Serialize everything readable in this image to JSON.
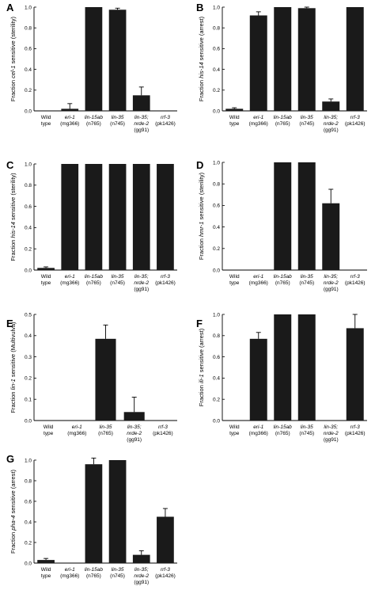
{
  "chart_data": [
    {
      "panel": "A",
      "type": "bar",
      "ylabel_pre": "Fraction ",
      "ylabel_gene": "cel-1",
      "ylabel_post": " sensitive (sterility)",
      "ylim": [
        0,
        1.0
      ],
      "yticks": [
        "0.0",
        "0.2",
        "0.4",
        "0.6",
        "0.8",
        "1.0"
      ],
      "categories": [
        [
          "Wild",
          "type"
        ],
        [
          "eri-1",
          "(mg366)"
        ],
        [
          "lin-15ab",
          "(n765)"
        ],
        [
          "lin-35",
          "(n745)"
        ],
        [
          "lin-35;",
          "nrde-2",
          "(gg91)"
        ],
        [
          "rrf-3",
          "(pk1426)"
        ]
      ],
      "values": [
        0,
        0.02,
        1.0,
        0.975,
        0.15,
        null
      ],
      "errors": [
        0,
        0.05,
        0,
        0.015,
        0.08,
        0
      ]
    },
    {
      "panel": "B",
      "type": "bar",
      "ylabel_pre": "Fraction ",
      "ylabel_gene": "his-14",
      "ylabel_post": " sensitive (arrest)",
      "ylim": [
        0,
        1.0
      ],
      "yticks": [
        "0.0",
        "0.2",
        "0.4",
        "0.6",
        "0.8",
        "1.0"
      ],
      "categories": [
        [
          "Wild",
          "type"
        ],
        [
          "eri-1",
          "(mg366)"
        ],
        [
          "lin-15ab",
          "(n765)"
        ],
        [
          "lin-35",
          "(n745)"
        ],
        [
          "lin-35;",
          "nrde-2",
          "(gg91)"
        ],
        [
          "rrf-3",
          "(pk1426)"
        ]
      ],
      "values": [
        0.02,
        0.92,
        1.0,
        0.99,
        0.09,
        1.0
      ],
      "errors": [
        0.01,
        0.035,
        0,
        0.01,
        0.025,
        0
      ]
    },
    {
      "panel": "C",
      "type": "bar",
      "ylabel_pre": "Fraction ",
      "ylabel_gene": "his-14",
      "ylabel_post": " sensitive (sterility)",
      "ylim": [
        0,
        1.0
      ],
      "yticks": [
        "0.0",
        "0.2",
        "0.4",
        "0.6",
        "0.8",
        "1.0"
      ],
      "categories": [
        [
          "Wild",
          "type"
        ],
        [
          "eri-1",
          "(mg366)"
        ],
        [
          "lin-15ab",
          "(n765)"
        ],
        [
          "lin-35",
          "(n745)"
        ],
        [
          "lin-35;",
          "nrde-2",
          "(gg91)"
        ],
        [
          "rrf-3",
          "(pk1426)"
        ]
      ],
      "values": [
        0.02,
        1.0,
        1.0,
        1.0,
        1.0,
        1.0
      ],
      "errors": [
        0.01,
        0,
        0,
        0,
        0,
        0
      ]
    },
    {
      "panel": "D",
      "type": "bar",
      "ylabel_pre": "Fraction ",
      "ylabel_gene": "hmr-1",
      "ylabel_post": " sensitive (sterility)",
      "ylim": [
        0,
        1.0
      ],
      "yticks": [
        "0.0",
        "0.2",
        "0.4",
        "0.6",
        "0.8",
        "1.0"
      ],
      "categories": [
        [
          "Wild",
          "type"
        ],
        [
          "eri-1",
          "(mg366)"
        ],
        [
          "lin-15ab",
          "(n765)"
        ],
        [
          "lin-35",
          "(n745)"
        ],
        [
          "lin-35;",
          "nrde-2",
          "(gg91)"
        ],
        [
          "rrf-3",
          "(pk1426)"
        ]
      ],
      "values": [
        0,
        0,
        1.0,
        1.0,
        0.62,
        0
      ],
      "errors": [
        0,
        0,
        0,
        0,
        0.13,
        0
      ]
    },
    {
      "panel": "E",
      "type": "bar",
      "ylabel_pre": "Fraction ",
      "ylabel_gene": "lin-1",
      "ylabel_post": " sensitive (Multivulva)",
      "ylim": [
        0,
        0.5
      ],
      "yticks": [
        "0.0",
        "0.1",
        "0.2",
        "0.3",
        "0.4",
        "0.5"
      ],
      "categories": [
        [
          "Wild",
          "type"
        ],
        [
          "eri-1",
          "(mg366)"
        ],
        [
          "lin-35",
          "(n765)"
        ],
        [
          "lin-35;",
          "nrde-2",
          "(gg91)"
        ],
        [
          "rrf-3",
          "(pk1426)"
        ]
      ],
      "values": [
        0,
        0,
        0.385,
        0.04,
        0
      ],
      "errors": [
        0,
        0,
        0.065,
        0.07,
        0
      ]
    },
    {
      "panel": "F",
      "type": "bar",
      "ylabel_pre": "Fraction ",
      "ylabel_gene": "ili-1",
      "ylabel_post": " sensitive (arrest)",
      "ylim": [
        0,
        1.0
      ],
      "yticks": [
        "0.0",
        "0.2",
        "0.4",
        "0.6",
        "0.8",
        "1.0"
      ],
      "categories": [
        [
          "Wild",
          "type"
        ],
        [
          "eri-1",
          "(mg366)"
        ],
        [
          "lin-15ab",
          "(n765)"
        ],
        [
          "lin-35",
          "(n745)"
        ],
        [
          "lin-35;",
          "nrde-2",
          "(gg91)"
        ],
        [
          "rrf-3",
          "(pk1426)"
        ]
      ],
      "values": [
        0,
        0.77,
        1.0,
        1.0,
        0,
        0.87
      ],
      "errors": [
        0,
        0.06,
        0,
        0,
        0,
        0.13
      ]
    },
    {
      "panel": "G",
      "type": "bar",
      "ylabel_pre": "Fraction ",
      "ylabel_gene": "pha-4",
      "ylabel_post": " sensitive (arrest)",
      "ylim": [
        0,
        1.0
      ],
      "yticks": [
        "0.0",
        "0.2",
        "0.4",
        "0.6",
        "0.8",
        "1.0"
      ],
      "categories": [
        [
          "Wild",
          "type"
        ],
        [
          "eri-1",
          "(mg366)"
        ],
        [
          "lin-15ab",
          "(n765)"
        ],
        [
          "lin-35",
          "(n745)"
        ],
        [
          "lin-35;",
          "nrde-2",
          "(gg91)"
        ],
        [
          "rrf-3",
          "(pk1426)"
        ]
      ],
      "values": [
        0.03,
        0,
        0.96,
        1.0,
        0.08,
        0.45
      ],
      "errors": [
        0.015,
        0,
        0.06,
        0,
        0.04,
        0.08
      ]
    }
  ]
}
